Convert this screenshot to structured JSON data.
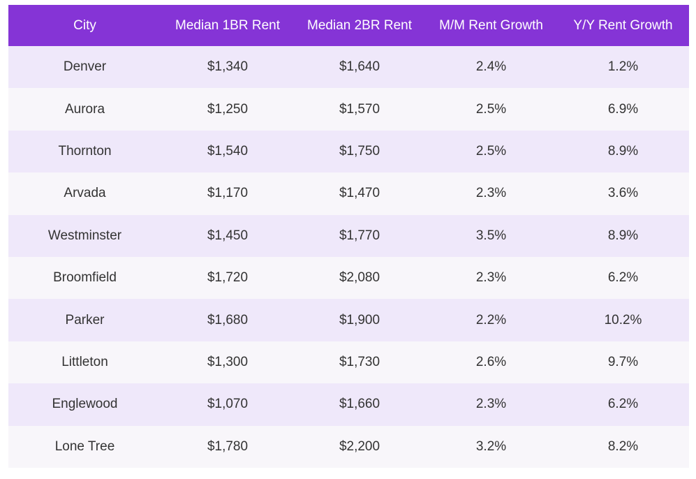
{
  "table": {
    "headers": [
      "City",
      "Median 1BR Rent",
      "Median 2BR Rent",
      "M/M Rent Growth",
      "Y/Y Rent Growth"
    ],
    "rows": [
      [
        "Denver",
        "$1,340",
        "$1,640",
        "2.4%",
        "1.2%"
      ],
      [
        "Aurora",
        "$1,250",
        "$1,570",
        "2.5%",
        "6.9%"
      ],
      [
        "Thornton",
        "$1,540",
        "$1,750",
        "2.5%",
        "8.9%"
      ],
      [
        "Arvada",
        "$1,170",
        "$1,470",
        "2.3%",
        "3.6%"
      ],
      [
        "Westminster",
        "$1,450",
        "$1,770",
        "3.5%",
        "8.9%"
      ],
      [
        "Broomfield",
        "$1,720",
        "$2,080",
        "2.3%",
        "6.2%"
      ],
      [
        "Parker",
        "$1,680",
        "$1,900",
        "2.2%",
        "10.2%"
      ],
      [
        "Littleton",
        "$1,300",
        "$1,730",
        "2.6%",
        "9.7%"
      ],
      [
        "Englewood",
        "$1,070",
        "$1,660",
        "2.3%",
        "6.2%"
      ],
      [
        "Lone Tree",
        "$1,780",
        "$2,200",
        "3.2%",
        "8.2%"
      ]
    ]
  },
  "colors": {
    "header_bg": "#8534d6",
    "header_text": "#ffffff",
    "row_odd_bg": "#efe8fa",
    "row_even_bg": "#f8f6fa",
    "cell_text": "#333333"
  }
}
